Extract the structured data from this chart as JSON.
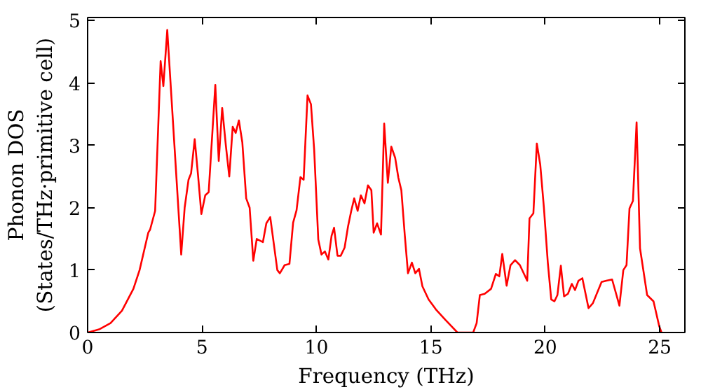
{
  "chart_data": {
    "type": "line",
    "xlabel": "Frequency (THz)",
    "ylabel": "Phonon DOS\n(States/THz·primitive cell)",
    "xlim": [
      0,
      26.1
    ],
    "ylim": [
      0,
      5.05
    ],
    "xticks": [
      0,
      5,
      10,
      15,
      20,
      25
    ],
    "yticks": [
      0,
      1,
      2,
      3,
      4,
      5
    ],
    "grid": false,
    "series": [
      {
        "color": "#ff0000",
        "x": [
          0,
          0.5,
          1,
          1.5,
          2,
          2.27,
          2.65,
          2.73,
          2.95,
          3.19,
          3.31,
          3.48,
          4.09,
          4.24,
          4.41,
          4.52,
          4.68,
          4.83,
          4.97,
          5.14,
          5.29,
          5.58,
          5.73,
          5.88,
          6.04,
          6.19,
          6.34,
          6.47,
          6.61,
          6.76,
          6.93,
          7.08,
          7.24,
          7.39,
          7.66,
          7.81,
          7.98,
          8.29,
          8.4,
          8.61,
          8.82,
          8.98,
          9.13,
          9.3,
          9.44,
          9.61,
          9.76,
          9.9,
          10.08,
          10.22,
          10.37,
          10.52,
          10.66,
          10.77,
          10.92,
          11.06,
          11.23,
          11.38,
          11.52,
          11.65,
          11.8,
          11.94,
          12.1,
          12.25,
          12.4,
          12.5,
          12.65,
          12.82,
          12.96,
          13.12,
          13.27,
          13.44,
          13.58,
          13.71,
          13.86,
          14.0,
          14.17,
          14.32,
          14.48,
          14.63,
          14.9,
          15.22,
          15.64,
          16.16,
          16.85,
          17.0,
          17.14,
          17.35,
          17.63,
          17.84,
          17.99,
          18.12,
          18.31,
          18.48,
          18.68,
          18.89,
          19.21,
          19.31,
          19.48,
          19.63,
          19.78,
          19.94,
          20.11,
          20.26,
          20.4,
          20.53,
          20.68,
          20.82,
          20.99,
          21.16,
          21.3,
          21.45,
          21.62,
          21.89,
          22.08,
          22.46,
          22.67,
          22.92,
          23.24,
          23.41,
          23.55,
          23.68,
          23.83,
          23.99,
          24.14,
          24.45,
          24.73,
          24.98,
          25.08
        ],
        "values": [
          0,
          0.05,
          0.15,
          0.35,
          0.7,
          1.0,
          1.6,
          1.65,
          1.95,
          4.35,
          3.95,
          4.85,
          1.25,
          2.0,
          2.45,
          2.55,
          3.1,
          2.5,
          1.9,
          2.2,
          2.25,
          3.97,
          2.75,
          3.6,
          3.0,
          2.5,
          3.3,
          3.2,
          3.4,
          3.05,
          2.15,
          2.0,
          1.15,
          1.5,
          1.45,
          1.75,
          1.85,
          1.0,
          0.95,
          1.08,
          1.1,
          1.76,
          1.96,
          2.49,
          2.45,
          3.8,
          3.66,
          2.93,
          1.49,
          1.25,
          1.3,
          1.17,
          1.55,
          1.68,
          1.23,
          1.23,
          1.36,
          1.7,
          1.95,
          2.15,
          1.95,
          2.2,
          2.07,
          2.36,
          2.28,
          1.6,
          1.75,
          1.57,
          3.35,
          2.4,
          2.98,
          2.8,
          2.48,
          2.28,
          1.56,
          0.95,
          1.12,
          0.95,
          1.02,
          0.74,
          0.53,
          0.37,
          0.2,
          0,
          0,
          0.15,
          0.6,
          0.62,
          0.7,
          0.94,
          0.9,
          1.26,
          0.75,
          1.08,
          1.16,
          1.08,
          0.83,
          1.83,
          1.91,
          3.03,
          2.69,
          2.0,
          1.12,
          0.53,
          0.5,
          0.6,
          1.07,
          0.58,
          0.62,
          0.78,
          0.68,
          0.83,
          0.87,
          0.39,
          0.47,
          0.81,
          0.83,
          0.85,
          0.43,
          1.0,
          1.08,
          1.99,
          2.11,
          3.37,
          1.35,
          0.6,
          0.5,
          0.1,
          0
        ]
      }
    ]
  }
}
